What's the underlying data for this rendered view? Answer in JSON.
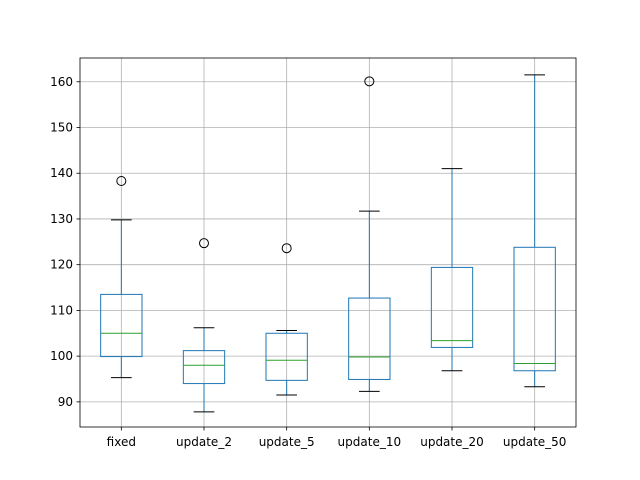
{
  "chart_data": {
    "type": "box",
    "categories": [
      "fixed",
      "update_2",
      "update_5",
      "update_10",
      "update_20",
      "update_50"
    ],
    "boxes": [
      {
        "whisker_low": 95.3,
        "q1": 99.9,
        "median": 105.0,
        "q3": 113.5,
        "whisker_high": 129.8,
        "outliers": [
          138.3
        ]
      },
      {
        "whisker_low": 87.8,
        "q1": 94.0,
        "median": 98.0,
        "q3": 101.2,
        "whisker_high": 106.2,
        "outliers": [
          124.7
        ]
      },
      {
        "whisker_low": 91.5,
        "q1": 94.7,
        "median": 99.1,
        "q3": 105.0,
        "whisker_high": 105.6,
        "outliers": [
          123.6
        ]
      },
      {
        "whisker_low": 92.3,
        "q1": 94.9,
        "median": 99.8,
        "q3": 112.7,
        "whisker_high": 131.7,
        "outliers": [
          160.1
        ]
      },
      {
        "whisker_low": 96.8,
        "q1": 101.9,
        "median": 103.4,
        "q3": 119.4,
        "whisker_high": 141.0,
        "outliers": []
      },
      {
        "whisker_low": 93.3,
        "q1": 96.8,
        "median": 98.4,
        "q3": 123.8,
        "whisker_high": 161.5,
        "outliers": []
      }
    ],
    "yticks": [
      90,
      100,
      110,
      120,
      130,
      140,
      150,
      160
    ],
    "ylim": [
      84.5,
      165.2
    ],
    "grid": true,
    "title": "",
    "xlabel": "",
    "ylabel": "",
    "colors": {
      "box": "#1f77b4",
      "median": "#2ca02c",
      "whisker_cap": "#000000",
      "grid": "#b0b0b0",
      "axis": "#000000",
      "outlier": "#000000"
    }
  }
}
